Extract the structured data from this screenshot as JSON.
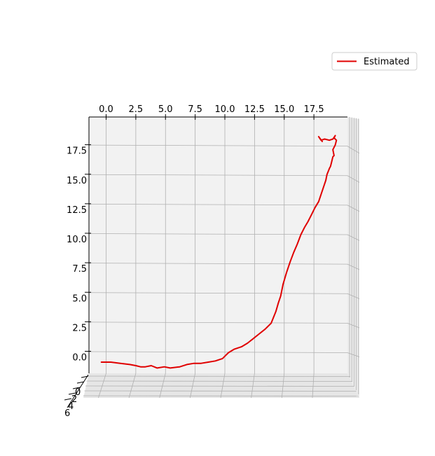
{
  "chart_data": {
    "type": "line",
    "projection": "3d",
    "view": "top-down",
    "title": "",
    "xlabel": "",
    "ylabel": "",
    "zlabel": "",
    "xlim": [
      -1.5,
      20.5
    ],
    "ylim": [
      -2.5,
      20.0
    ],
    "grid": true,
    "x_ticks": [
      "0.0",
      "2.5",
      "5.0",
      "7.5",
      "10.0",
      "12.5",
      "15.0",
      "17.5"
    ],
    "x_tick_values": [
      0,
      2.5,
      5,
      7.5,
      10,
      12.5,
      15,
      17.5
    ],
    "y_ticks": [
      "0.0",
      "2.5",
      "5.0",
      "7.5",
      "10.0",
      "12.5",
      "15.0",
      "17.5"
    ],
    "y_tick_values": [
      0,
      2.5,
      5,
      7.5,
      10,
      12.5,
      15,
      17.5
    ],
    "z_tick_labels": [
      "6",
      "4",
      "2",
      "0"
    ],
    "legend": {
      "position": "top-right",
      "entries": [
        "Estimated"
      ]
    },
    "series": [
      {
        "name": "Estimated",
        "color": "#e00000",
        "x": [
          -0.4,
          0.4,
          1.2,
          2.0,
          2.5,
          2.9,
          3.3,
          3.8,
          4.3,
          4.9,
          5.4,
          6.2,
          6.8,
          7.4,
          8.0,
          8.6,
          9.2,
          9.8,
          10.3,
          10.8,
          11.4,
          11.9,
          12.4,
          12.9,
          13.4,
          13.9,
          14.3,
          14.5,
          14.7,
          14.9,
          15.2,
          15.5,
          15.8,
          16.1,
          16.4,
          16.7,
          17.0,
          17.3,
          17.6,
          17.9,
          18.1,
          18.3,
          18.5,
          18.6,
          18.8,
          18.9,
          19.0,
          19.1,
          19.2,
          19.1,
          19.3,
          19.4,
          19.2,
          19.3,
          19.1,
          18.8,
          18.4,
          18.1,
          17.9,
          18.2
        ],
        "y": [
          -0.8,
          -0.8,
          -0.9,
          -1.0,
          -1.1,
          -1.2,
          -1.2,
          -1.1,
          -1.3,
          -1.2,
          -1.3,
          -1.2,
          -1.0,
          -0.9,
          -0.9,
          -0.8,
          -0.7,
          -0.5,
          0.0,
          0.3,
          0.5,
          0.8,
          1.2,
          1.6,
          2.0,
          2.5,
          3.5,
          4.2,
          4.8,
          5.8,
          6.8,
          7.7,
          8.5,
          9.2,
          10.0,
          10.6,
          11.1,
          11.7,
          12.3,
          12.8,
          13.4,
          14.0,
          14.6,
          15.1,
          15.6,
          15.8,
          16.2,
          16.6,
          16.7,
          17.2,
          17.6,
          18.0,
          18.2,
          18.4,
          18.1,
          18.0,
          18.1,
          18.0,
          18.3,
          17.9
        ]
      }
    ]
  }
}
